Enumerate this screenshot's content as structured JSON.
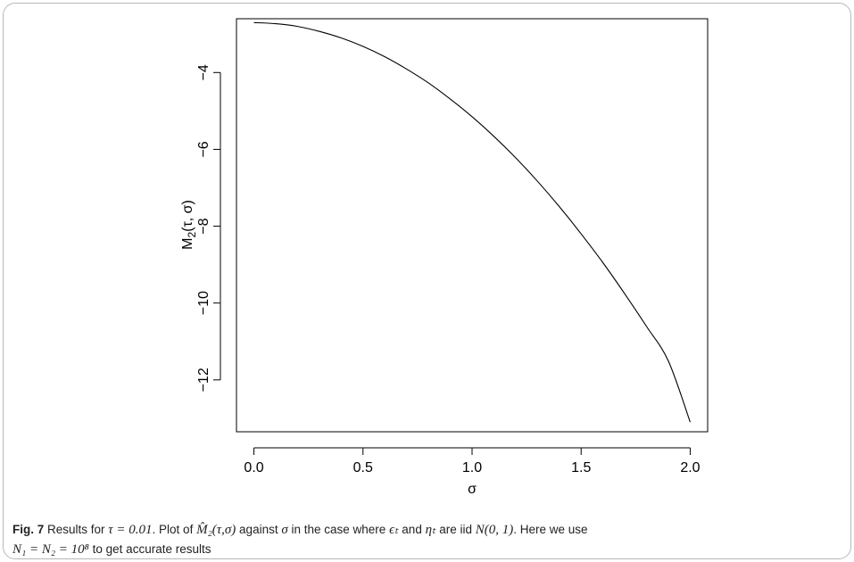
{
  "chart_data": {
    "type": "line",
    "title": "",
    "xlabel": "σ",
    "ylabel": "M₂(τ, σ)",
    "xlim": [
      -0.08,
      2.08
    ],
    "ylim": [
      -13.35,
      -2.6
    ],
    "x_ticks": [
      0.0,
      0.5,
      1.0,
      1.5,
      2.0
    ],
    "x_tick_labels": [
      "0.0",
      "0.5",
      "1.0",
      "1.5",
      "2.0"
    ],
    "y_ticks": [
      -4,
      -6,
      -8,
      -10,
      -12
    ],
    "y_tick_labels": [
      "−4",
      "−6",
      "−8",
      "−10",
      "−12"
    ],
    "grid": false,
    "legend": "none",
    "series": [
      {
        "x": [
          0.0,
          0.1,
          0.2,
          0.3,
          0.4,
          0.5,
          0.6,
          0.7,
          0.8,
          0.9,
          1.0,
          1.1,
          1.2,
          1.3,
          1.4,
          1.5,
          1.6,
          1.7,
          1.8,
          1.9,
          2.0
        ],
        "values": [
          -2.7,
          -2.73,
          -2.8,
          -2.93,
          -3.1,
          -3.32,
          -3.59,
          -3.91,
          -4.27,
          -4.69,
          -5.15,
          -5.66,
          -6.22,
          -6.83,
          -7.49,
          -8.2,
          -8.95,
          -9.76,
          -10.61,
          -11.51,
          -13.1
        ]
      }
    ],
    "line_color": "#000000"
  },
  "caption": {
    "fig_label": "Fig. 7",
    "text_1": " Results for ",
    "tau_eq": "τ = 0.01",
    "text_2": ". Plot of ",
    "mhat": "M̂₂(τ,σ)",
    "text_3": " against ",
    "sigma": "σ",
    "text_4": " in the case where ",
    "eps": "ϵₜ",
    "text_5": " and ",
    "eta": "ηₜ",
    "text_6": " are iid ",
    "dist": "N(0, 1)",
    "text_7": ". Here we use",
    "line2_eq": "N₁ = N₂ = 10⁸",
    "line2_text": " to get accurate results"
  }
}
